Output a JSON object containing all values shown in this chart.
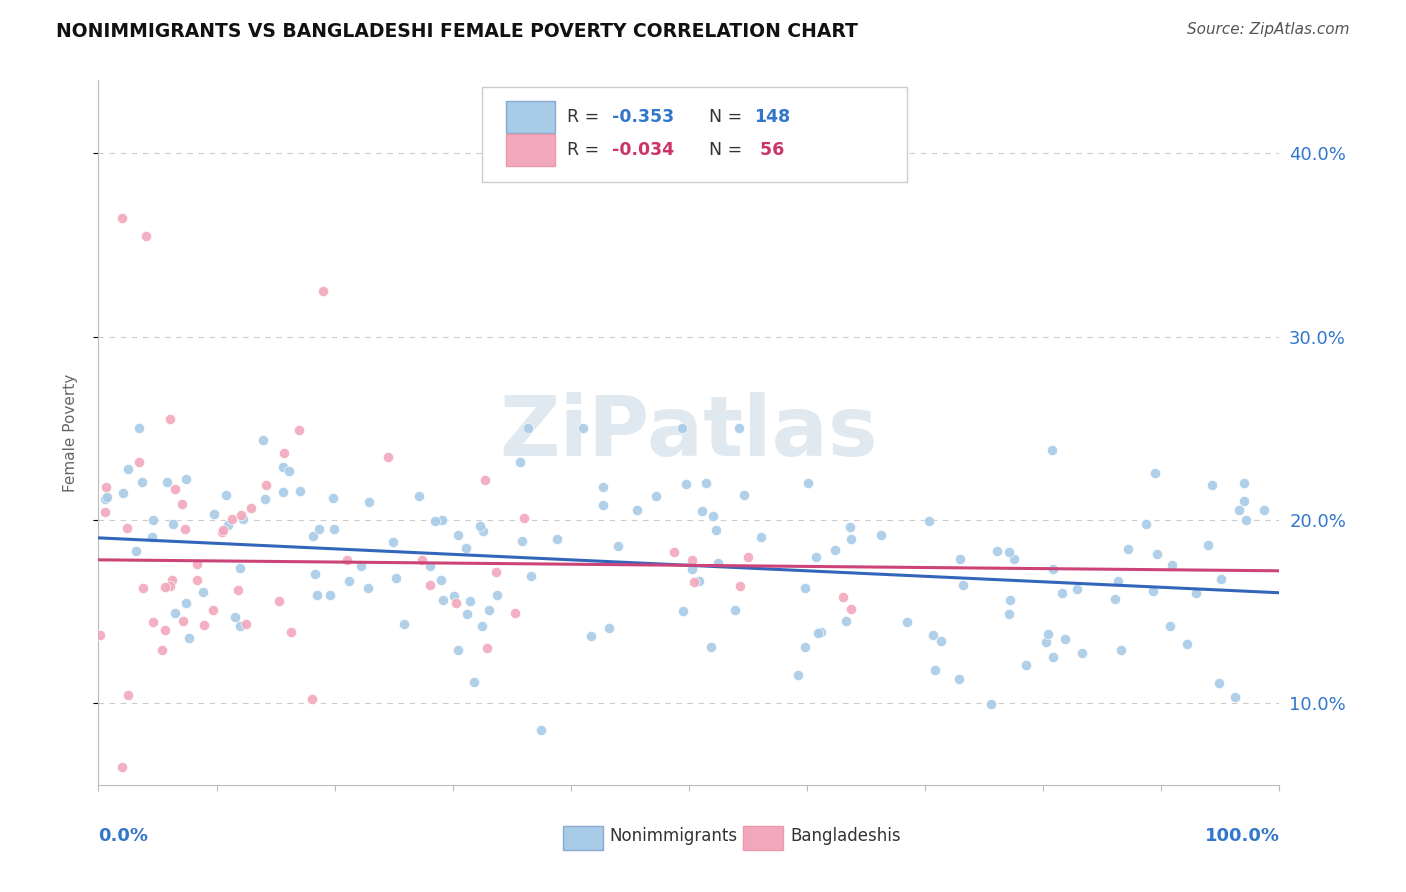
{
  "title": "NONIMMIGRANTS VS BANGLADESHI FEMALE POVERTY CORRELATION CHART",
  "source": "Source: ZipAtlas.com",
  "ylabel": "Female Poverty",
  "legend_label1": "Nonimmigrants",
  "legend_label2": "Bangladeshis",
  "color_blue": "#A8CBE8",
  "color_pink": "#F2A8BC",
  "color_blue_dark": "#3366BB",
  "color_pink_dark": "#CC4477",
  "color_blue_text": "#3377CC",
  "color_pink_text": "#CC3366",
  "color_line_blue": "#3366BB",
  "color_line_pink": "#CC4477",
  "background_color": "#FFFFFF",
  "watermark": "ZiPatlas",
  "seed_blue": 42,
  "seed_pink": 77
}
